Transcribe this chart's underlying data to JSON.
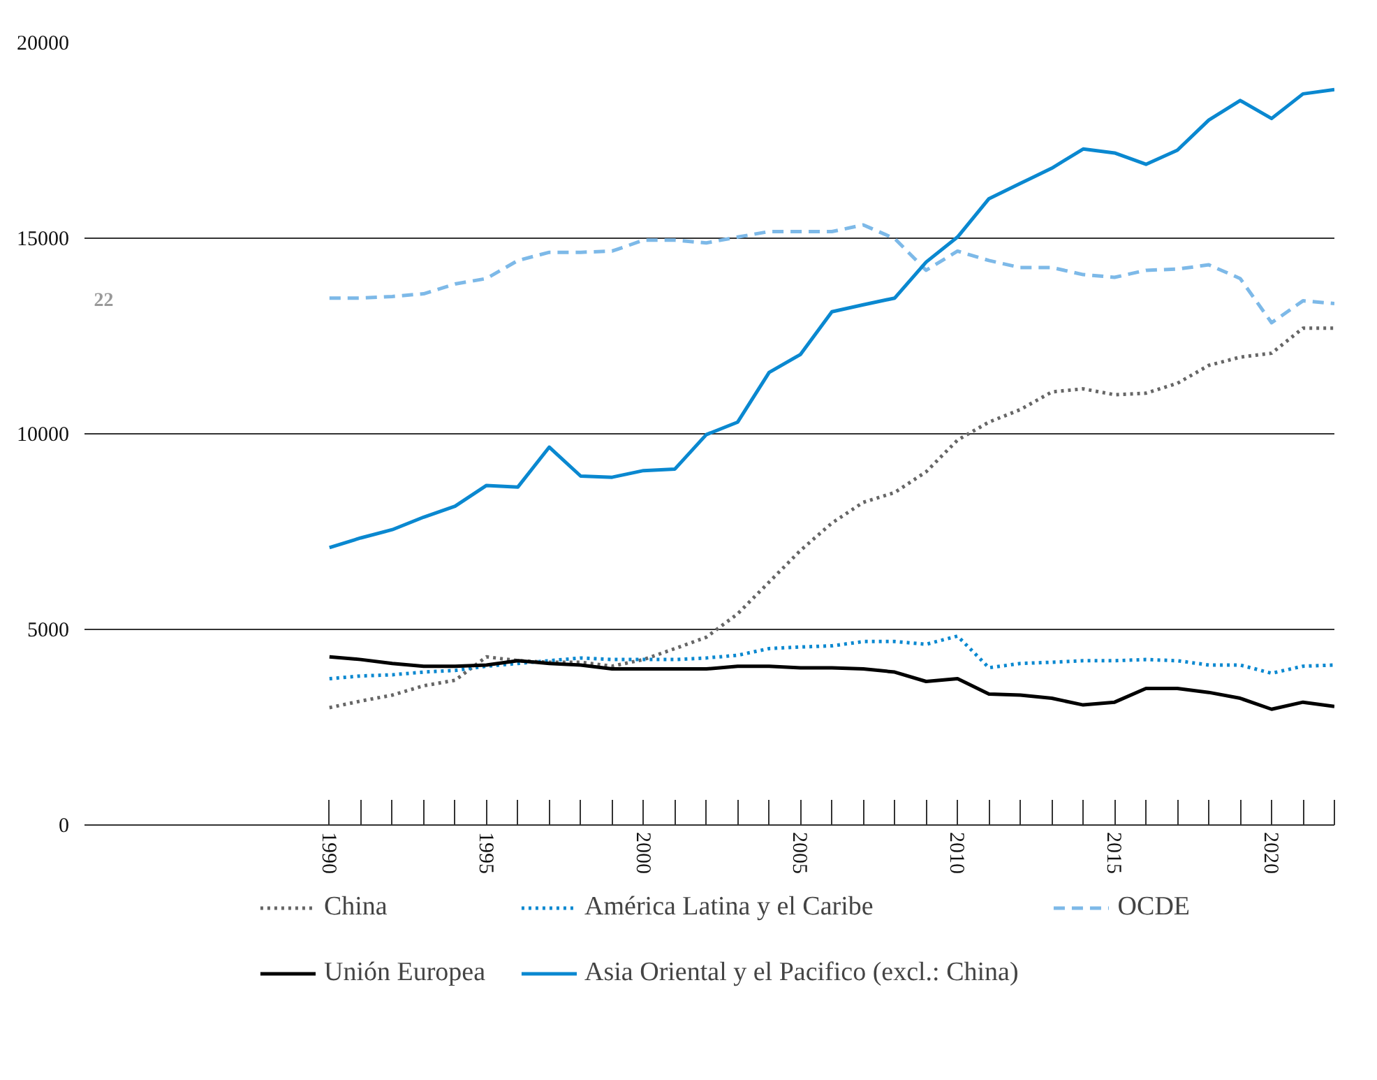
{
  "chart_data": {
    "type": "line",
    "x": [
      1990,
      1991,
      1992,
      1993,
      1994,
      1995,
      1996,
      1997,
      1998,
      1999,
      2000,
      2001,
      2002,
      2003,
      2004,
      2005,
      2006,
      2007,
      2008,
      2009,
      2010,
      2011,
      2012,
      2013,
      2014,
      2015,
      2016,
      2017,
      2018,
      2019,
      2020,
      2021,
      2022
    ],
    "xlim": [
      1982.2,
      2022
    ],
    "xticks": [
      {
        "value": 1990,
        "label": "1990"
      },
      {
        "value": 1995,
        "label": "1995"
      },
      {
        "value": 2000,
        "label": "2000"
      },
      {
        "value": 2005,
        "label": "2005"
      },
      {
        "value": 2010,
        "label": "2010"
      },
      {
        "value": 2015,
        "label": "2015"
      },
      {
        "value": 2020,
        "label": "2020"
      }
    ],
    "ylim": [
      0,
      20000
    ],
    "yticks": [
      0,
      5000,
      10000,
      15000,
      20000
    ],
    "grid": "y",
    "legend": "bottom",
    "annotations": [
      "22"
    ],
    "series": [
      {
        "name": "China",
        "color": "#666666",
        "line_style": "dotted",
        "values": [
          3000,
          3170,
          3320,
          3560,
          3700,
          4300,
          4200,
          4160,
          4160,
          4060,
          4230,
          4510,
          4800,
          5400,
          6210,
          7020,
          7720,
          8250,
          8500,
          9030,
          9840,
          10300,
          10620,
          11070,
          11150,
          11000,
          11040,
          11290,
          11750,
          11960,
          12060,
          12700,
          12700
        ]
      },
      {
        "name": "América Latina y el Caribe",
        "color": "#0a88d0",
        "line_style": "dotted",
        "values": [
          3740,
          3810,
          3840,
          3910,
          3950,
          4060,
          4130,
          4200,
          4270,
          4230,
          4230,
          4230,
          4270,
          4340,
          4510,
          4550,
          4580,
          4690,
          4690,
          4620,
          4830,
          4020,
          4130,
          4160,
          4200,
          4200,
          4230,
          4200,
          4090,
          4090,
          3880,
          4060,
          4090
        ]
      },
      {
        "name": "OCDE",
        "color": "#7db9e8",
        "line_style": "dashed",
        "values": [
          13470,
          13470,
          13510,
          13580,
          13830,
          13970,
          14430,
          14640,
          14640,
          14670,
          14950,
          14950,
          14880,
          15030,
          15170,
          15170,
          15170,
          15340,
          14990,
          14180,
          14670,
          14430,
          14250,
          14250,
          14070,
          14000,
          14180,
          14210,
          14320,
          13970,
          12840,
          13400,
          13330
        ]
      },
      {
        "name": "Unión Europea",
        "color": "#000000",
        "line_style": "solid",
        "values": [
          4300,
          4230,
          4130,
          4060,
          4060,
          4090,
          4200,
          4130,
          4090,
          3990,
          3990,
          3990,
          3990,
          4060,
          4060,
          4020,
          4020,
          3990,
          3910,
          3670,
          3740,
          3350,
          3320,
          3240,
          3070,
          3140,
          3490,
          3490,
          3390,
          3240,
          2960,
          3140,
          3030
        ]
      },
      {
        "name": "Asia Oriental y el Pacifico (excl.: China)",
        "color": "#0a88d0",
        "line_style": "solid",
        "values": [
          7090,
          7340,
          7550,
          7870,
          8150,
          8680,
          8640,
          9660,
          8920,
          8890,
          9060,
          9100,
          9980,
          10300,
          11570,
          12030,
          13120,
          13300,
          13470,
          14390,
          15030,
          16010,
          16400,
          16790,
          17280,
          17180,
          16890,
          17250,
          18020,
          18520,
          18060,
          18690,
          18800
        ]
      }
    ]
  }
}
